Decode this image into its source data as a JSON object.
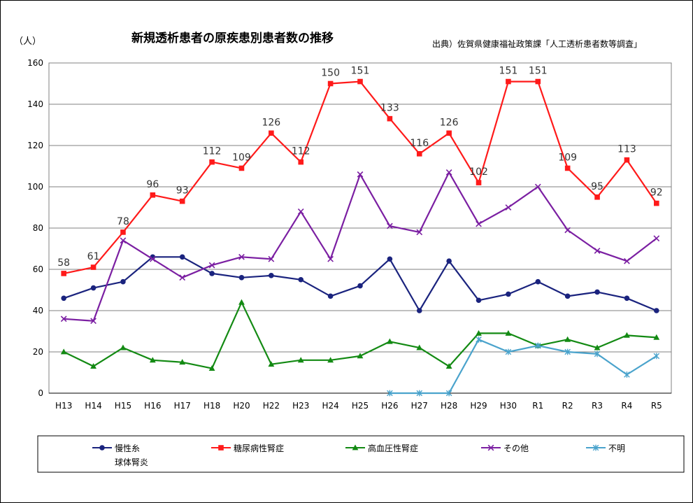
{
  "chart_data": {
    "type": "line",
    "title": "新規透析患者の原疾患別患者数の推移",
    "source": "出典）佐賀県健康福祉政策課「人工透析患者数等調査」",
    "unit": "（人）",
    "ylim": [
      0,
      160
    ],
    "yticks": [
      0,
      20,
      40,
      60,
      80,
      100,
      120,
      140,
      160
    ],
    "grid": true,
    "legend_position": "bottom",
    "categories": [
      "H13",
      "H14",
      "H15",
      "H16",
      "H17",
      "H18",
      "H20",
      "H22",
      "H23",
      "H24",
      "H25",
      "H26",
      "H27",
      "H28",
      "H29",
      "H30",
      "R1",
      "R2",
      "R3",
      "R4",
      "R5"
    ],
    "series": [
      {
        "name": "慢性糸球体腎炎",
        "legend_lines": [
          "慢性糸",
          "球体腎炎"
        ],
        "color": "#1a237e",
        "marker": "circle",
        "values": [
          46,
          51,
          54,
          66,
          66,
          58,
          56,
          57,
          55,
          47,
          52,
          65,
          40,
          64,
          45,
          48,
          54,
          47,
          49,
          46,
          40
        ]
      },
      {
        "name": "糖尿病性腎症",
        "legend_lines": [
          "糖尿病性腎症"
        ],
        "color": "#ff1a1a",
        "marker": "square",
        "labeled": true,
        "values": [
          58,
          61,
          78,
          96,
          93,
          112,
          109,
          126,
          112,
          150,
          151,
          133,
          116,
          126,
          102,
          151,
          151,
          109,
          95,
          113,
          92
        ]
      },
      {
        "name": "高血圧性腎症",
        "legend_lines": [
          "高血圧性腎症"
        ],
        "color": "#138a13",
        "marker": "triangle",
        "values": [
          20,
          13,
          22,
          16,
          15,
          12,
          44,
          14,
          16,
          16,
          18,
          25,
          22,
          13,
          29,
          29,
          23,
          26,
          22,
          28,
          27
        ]
      },
      {
        "name": "その他",
        "legend_lines": [
          "その他"
        ],
        "color": "#7b1fa2",
        "marker": "x",
        "values": [
          36,
          35,
          74,
          65,
          56,
          62,
          66,
          65,
          88,
          65,
          106,
          81,
          78,
          107,
          82,
          90,
          100,
          79,
          69,
          64,
          75
        ]
      },
      {
        "name": "不明",
        "legend_lines": [
          "不明"
        ],
        "color": "#4aa3cc",
        "marker": "star",
        "values": [
          null,
          null,
          null,
          null,
          null,
          null,
          null,
          null,
          null,
          null,
          null,
          0,
          0,
          0,
          26,
          20,
          23,
          20,
          19,
          9,
          18
        ]
      }
    ]
  }
}
